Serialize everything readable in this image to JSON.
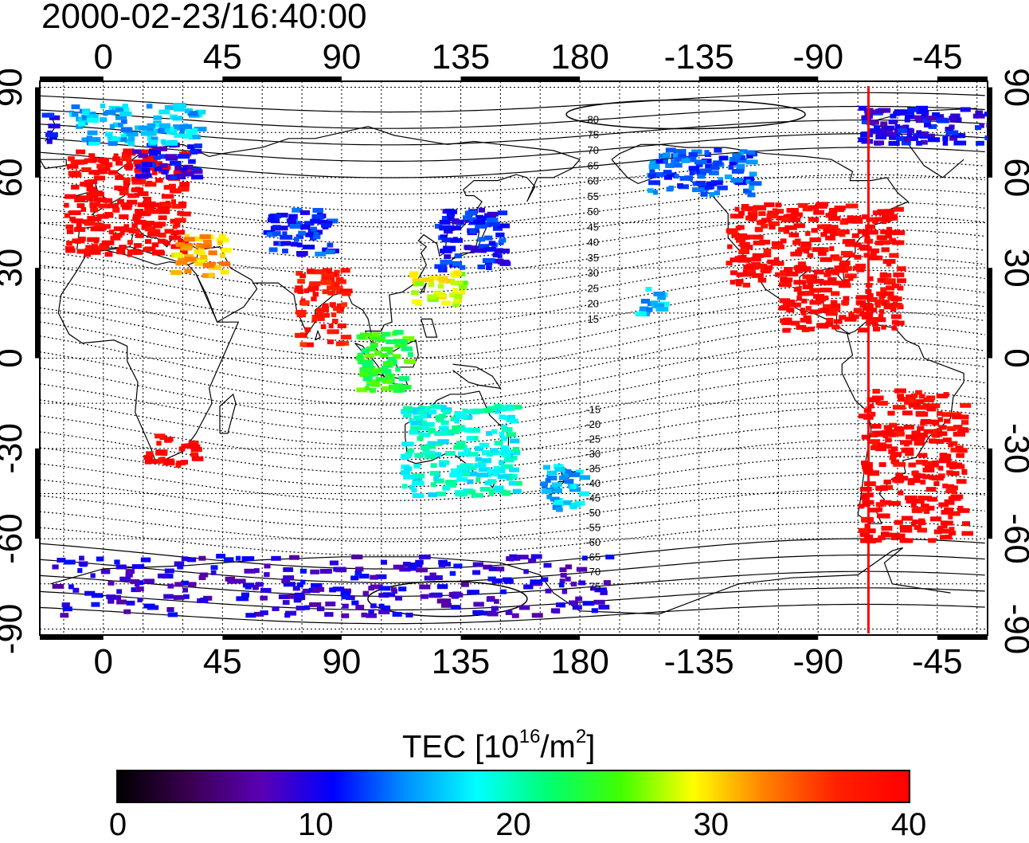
{
  "title": "2000-02-23/16:40:00",
  "map": {
    "projection": "equirectangular",
    "lon_range": [
      -24,
      334
    ],
    "lat_range": [
      -92,
      92
    ],
    "top_lon_labels": [
      "0",
      "45",
      "90",
      "135",
      "180",
      "-135",
      "-90",
      "-45"
    ],
    "bottom_lon_labels": [
      "0",
      "45",
      "90",
      "135",
      "180",
      "-135",
      "-90",
      "-45"
    ],
    "left_lat_labels": [
      "90",
      "60",
      "30",
      "0",
      "-30",
      "-60",
      "-90"
    ],
    "right_lat_labels": [
      "90",
      "60",
      "30",
      "0",
      "-30",
      "-60",
      "-90"
    ],
    "contour_labels": [
      "80",
      "75",
      "70",
      "65",
      "60",
      "55",
      "50",
      "45",
      "40",
      "35",
      "30",
      "25",
      "20",
      "15",
      "-15",
      "-20",
      "-25",
      "-30",
      "-35",
      "-40",
      "-45",
      "-50",
      "-55",
      "-60",
      "-65",
      "-70",
      "-75"
    ],
    "meridian_line": {
      "lon": -71,
      "color": "#ff0000"
    }
  },
  "colorbar": {
    "title_main": "TEC  [10",
    "title_exp1": "16",
    "title_mid": "/m",
    "title_exp2": "2",
    "title_end": "]",
    "min": 0,
    "max": 40,
    "tick_labels": [
      "0",
      "10",
      "20",
      "30",
      "40"
    ],
    "colors": [
      "#000000",
      "#3a0050",
      "#5a00b4",
      "#0000ff",
      "#0090ff",
      "#00ffff",
      "#00ff70",
      "#40ff00",
      "#ffff00",
      "#ff8000",
      "#ff2000",
      "#ff0000"
    ]
  },
  "tec_clusters": [
    {
      "region": "Europe",
      "lon": [
        -15,
        30
      ],
      "lat": [
        35,
        70
      ],
      "tec": 40
    },
    {
      "region": "Scandinavia",
      "lon": [
        10,
        35
      ],
      "lat": [
        60,
        72
      ],
      "tec": 10
    },
    {
      "region": "Arctic Atlantic",
      "lon": [
        -15,
        35
      ],
      "lat": [
        72,
        85
      ],
      "tec": 16
    },
    {
      "region": "Near East",
      "lon": [
        25,
        45
      ],
      "lat": [
        28,
        42
      ],
      "tec": 31
    },
    {
      "region": "Central Asia",
      "lon": [
        60,
        85
      ],
      "lat": [
        35,
        50
      ],
      "tec": 12
    },
    {
      "region": "Japan",
      "lon": [
        125,
        150
      ],
      "lat": [
        30,
        50
      ],
      "tec": 11
    },
    {
      "region": "East China",
      "lon": [
        115,
        135
      ],
      "lat": [
        18,
        30
      ],
      "tec": 28
    },
    {
      "region": "Alaska",
      "lon": [
        -155,
        -115
      ],
      "lat": [
        55,
        70
      ],
      "tec": 13
    },
    {
      "region": "North America",
      "lon": [
        -125,
        -60
      ],
      "lat": [
        25,
        52
      ],
      "tec": 40
    },
    {
      "region": "Central America",
      "lon": [
        -105,
        -60
      ],
      "lat": [
        10,
        25
      ],
      "tec": 40
    },
    {
      "region": "South America",
      "lon": [
        -75,
        -35
      ],
      "lat": [
        -60,
        -10
      ],
      "tec": 40
    },
    {
      "region": "Australia",
      "lon": [
        112,
        155
      ],
      "lat": [
        -45,
        -15
      ],
      "tec": 19
    },
    {
      "region": "New Zealand",
      "lon": [
        165,
        180
      ],
      "lat": [
        -50,
        -35
      ],
      "tec": 16
    },
    {
      "region": "South Africa",
      "lon": [
        15,
        35
      ],
      "lat": [
        -35,
        -25
      ],
      "tec": 40
    },
    {
      "region": "Antarctica",
      "lon": [
        -20,
        190
      ],
      "lat": [
        -85,
        -65
      ],
      "tec": 9
    },
    {
      "region": "Hawaii",
      "lon": [
        -160,
        -150
      ],
      "lat": [
        15,
        25
      ],
      "tec": 16
    },
    {
      "region": "Southeast Asia",
      "lon": [
        95,
        115
      ],
      "lat": [
        -10,
        10
      ],
      "tec": 24
    },
    {
      "region": "India",
      "lon": [
        72,
        90
      ],
      "lat": [
        5,
        30
      ],
      "tec": 38
    },
    {
      "region": "Greenland",
      "lon": [
        -75,
        -20
      ],
      "lat": [
        72,
        84
      ],
      "tec": 10
    }
  ]
}
